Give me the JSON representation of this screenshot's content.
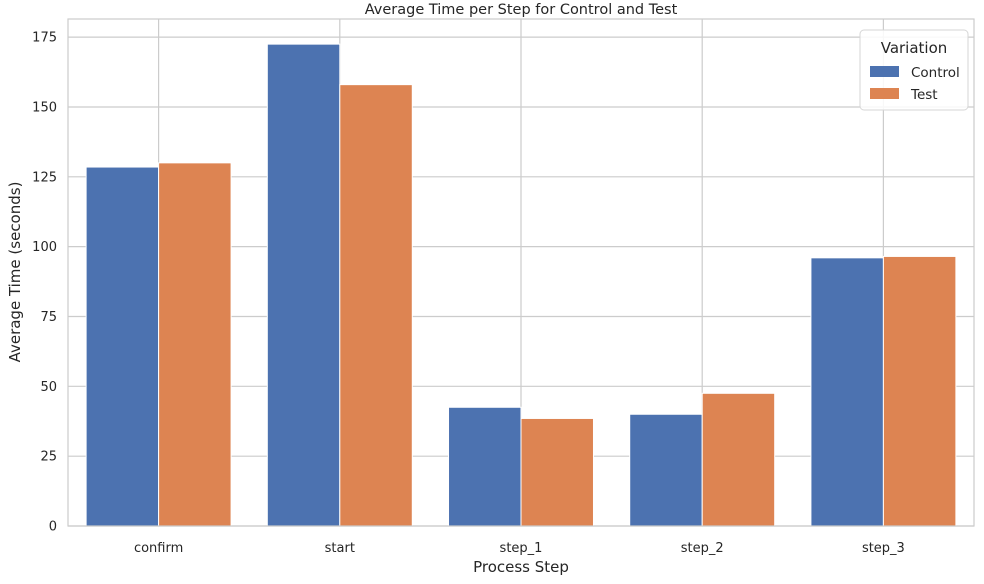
{
  "chart_data": {
    "type": "bar",
    "title": "Average Time per Step for Control and Test",
    "xlabel": "Process Step",
    "ylabel": "Average Time (seconds)",
    "categories": [
      "confirm",
      "start",
      "step_1",
      "step_2",
      "step_3"
    ],
    "series": [
      {
        "name": "Control",
        "values": [
          128.5,
          172.5,
          42.5,
          40.0,
          96.0
        ],
        "color": "#4c72b0"
      },
      {
        "name": "Test",
        "values": [
          130.0,
          158.0,
          38.5,
          47.5,
          96.5
        ],
        "color": "#dd8452"
      }
    ],
    "ylim": [
      0,
      181.5
    ],
    "yticks": [
      0,
      25,
      50,
      75,
      100,
      125,
      150,
      175
    ],
    "grid": true,
    "legend": {
      "title": "Variation",
      "placement": "top-right"
    }
  }
}
